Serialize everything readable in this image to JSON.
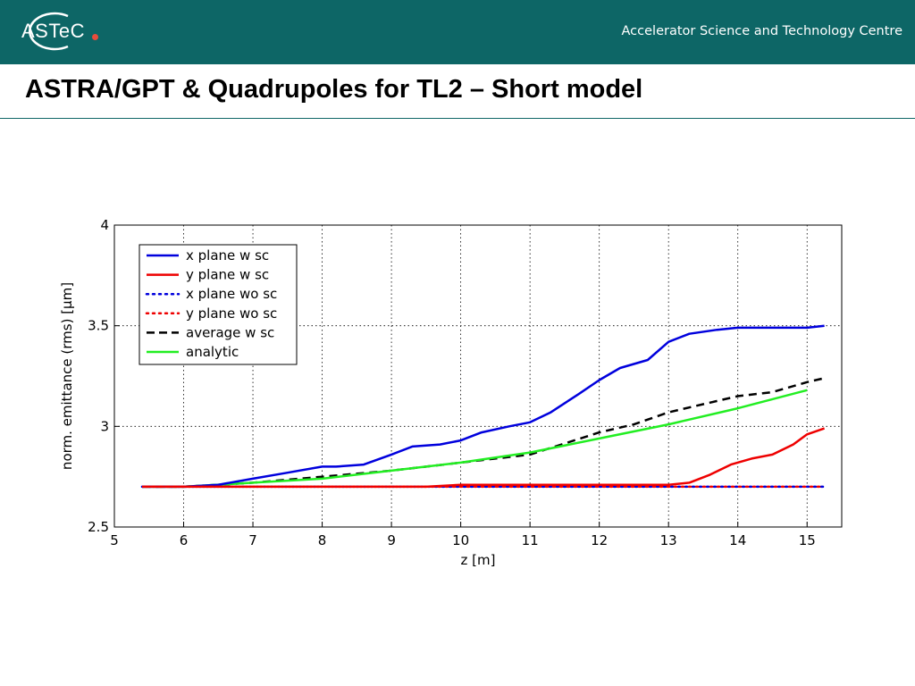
{
  "header": {
    "logo_text": "ASTeC",
    "tagline": "Accelerator Science and Technology Centre"
  },
  "slide": {
    "title": "ASTRA/GPT & Quadrupoles for TL2 – Short model"
  },
  "chart_data": {
    "type": "line",
    "title": "",
    "xlabel": "z [m]",
    "ylabel": "norm. emittance (rms) [µm]",
    "xlim": [
      5,
      15.5
    ],
    "ylim": [
      2.5,
      4
    ],
    "xticks": [
      5,
      6,
      7,
      8,
      9,
      10,
      11,
      12,
      13,
      14,
      15
    ],
    "yticks": [
      2.5,
      3,
      3.5,
      4
    ],
    "xtick_labels": [
      "5",
      "6",
      "7",
      "8",
      "9",
      "10",
      "11",
      "12",
      "13",
      "14",
      "15"
    ],
    "ytick_labels": [
      "2.5",
      "3",
      "3.5",
      "4"
    ],
    "grid": true,
    "legend_position": "top-left",
    "series": [
      {
        "name": "x plane w sc",
        "color": "#0000dd",
        "style": "solid",
        "x": [
          5.4,
          6.0,
          6.5,
          7.0,
          7.5,
          8.0,
          8.2,
          8.6,
          9.0,
          9.3,
          9.7,
          10.0,
          10.3,
          10.7,
          11.0,
          11.3,
          11.7,
          12.0,
          12.3,
          12.5,
          12.7,
          13.0,
          13.3,
          13.7,
          14.0,
          14.5,
          15.0,
          15.25
        ],
        "y": [
          2.7,
          2.7,
          2.71,
          2.74,
          2.77,
          2.8,
          2.8,
          2.81,
          2.86,
          2.9,
          2.91,
          2.93,
          2.97,
          3.0,
          3.02,
          3.07,
          3.16,
          3.23,
          3.29,
          3.31,
          3.33,
          3.42,
          3.46,
          3.48,
          3.49,
          3.49,
          3.49,
          3.5
        ]
      },
      {
        "name": "y plane w sc",
        "color": "#ee0000",
        "style": "solid",
        "x": [
          5.4,
          6.0,
          7.0,
          8.0,
          8.5,
          9.0,
          9.5,
          10.0,
          11.0,
          12.0,
          12.5,
          13.0,
          13.3,
          13.6,
          13.9,
          14.2,
          14.5,
          14.8,
          15.0,
          15.25
        ],
        "y": [
          2.7,
          2.7,
          2.7,
          2.7,
          2.7,
          2.7,
          2.7,
          2.71,
          2.71,
          2.71,
          2.71,
          2.71,
          2.72,
          2.76,
          2.81,
          2.84,
          2.86,
          2.91,
          2.96,
          2.99
        ]
      },
      {
        "name": "x plane wo sc",
        "color": "#0000dd",
        "style": "dotted",
        "x": [
          5.4,
          7.0,
          9.0,
          11.0,
          13.0,
          15.25
        ],
        "y": [
          2.7,
          2.7,
          2.7,
          2.7,
          2.7,
          2.7
        ]
      },
      {
        "name": "y plane wo sc",
        "color": "#ee0000",
        "style": "dotted",
        "x": [
          5.4,
          7.0,
          9.0,
          11.0,
          13.0,
          15.25
        ],
        "y": [
          2.7,
          2.7,
          2.7,
          2.7,
          2.7,
          2.7
        ]
      },
      {
        "name": "average w sc",
        "color": "#000000",
        "style": "dashed",
        "x": [
          5.4,
          6.0,
          7.0,
          8.0,
          9.0,
          10.0,
          11.0,
          12.0,
          12.5,
          13.0,
          13.5,
          14.0,
          14.5,
          15.0,
          15.25
        ],
        "y": [
          2.7,
          2.7,
          2.72,
          2.75,
          2.78,
          2.82,
          2.86,
          2.97,
          3.01,
          3.07,
          3.11,
          3.15,
          3.17,
          3.22,
          3.24
        ]
      },
      {
        "name": "analytic",
        "color": "#22ee22",
        "style": "solid",
        "x": [
          5.4,
          6.0,
          7.0,
          8.0,
          9.0,
          10.0,
          11.0,
          12.0,
          13.0,
          14.0,
          15.0
        ],
        "y": [
          2.7,
          2.7,
          2.72,
          2.74,
          2.78,
          2.82,
          2.87,
          2.94,
          3.01,
          3.09,
          3.18
        ]
      }
    ]
  }
}
